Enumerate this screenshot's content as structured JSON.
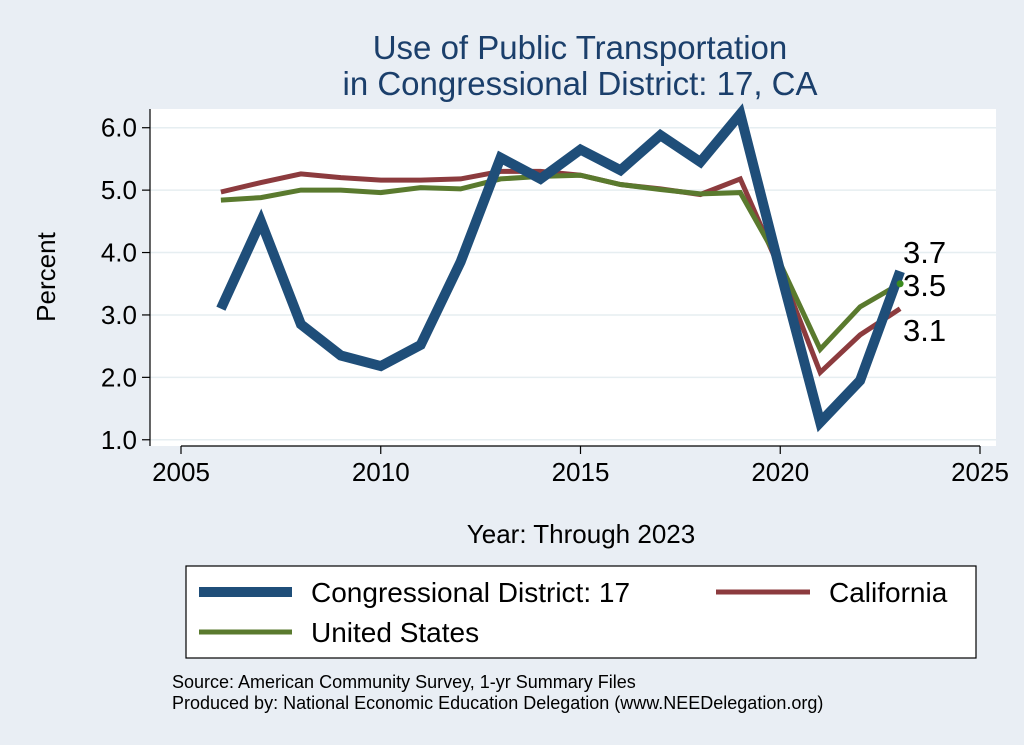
{
  "chart_data": {
    "type": "line",
    "title_lines": [
      "Use of Public Transportation",
      "in Congressional District: 17, CA"
    ],
    "xlabel": "Year: Through 2023",
    "ylabel": "Percent",
    "xlim": [
      2005,
      2025
    ],
    "ylim": [
      0.9,
      6.3
    ],
    "xticks": [
      2005,
      2010,
      2015,
      2020,
      2025
    ],
    "yticks": [
      1.0,
      2.0,
      3.0,
      4.0,
      5.0,
      6.0
    ],
    "ytick_labels": [
      "1.0",
      "2.0",
      "3.0",
      "4.0",
      "5.0",
      "6.0"
    ],
    "x": [
      2006,
      2007,
      2008,
      2009,
      2010,
      2011,
      2012,
      2013,
      2014,
      2015,
      2016,
      2017,
      2018,
      2019,
      2020,
      2021,
      2022,
      2023
    ],
    "series": [
      {
        "name": "Congressional District: 17",
        "color": "#1f4e79",
        "values": [
          3.1,
          4.5,
          2.85,
          2.35,
          2.18,
          2.52,
          3.85,
          5.52,
          5.18,
          5.65,
          5.32,
          5.88,
          5.45,
          6.22,
          3.7,
          1.28,
          1.95,
          3.7
        ]
      },
      {
        "name": "California",
        "color": "#8c3b3e",
        "values": [
          4.97,
          5.12,
          5.26,
          5.2,
          5.16,
          5.16,
          5.18,
          5.3,
          5.3,
          5.24,
          5.09,
          5.02,
          4.93,
          5.18,
          3.72,
          2.08,
          2.68,
          3.1
        ]
      },
      {
        "name": "United States",
        "color": "#5a7a2e",
        "values": [
          4.84,
          4.88,
          5.0,
          5.0,
          4.96,
          5.04,
          5.02,
          5.18,
          5.22,
          5.24,
          5.09,
          5.01,
          4.94,
          4.96,
          3.82,
          2.45,
          3.13,
          3.5
        ]
      }
    ],
    "end_labels": [
      "3.7",
      "3.5",
      "3.1"
    ],
    "legend": {
      "placement": "bottom",
      "entries": [
        "Congressional District: 17",
        "California",
        "United States"
      ]
    },
    "grid": true
  },
  "footer": {
    "source": "Source: American Community Survey, 1-yr Summary Files",
    "produced": "Produced by: National Economic Education Delegation (www.NEEDelegation.org)"
  }
}
